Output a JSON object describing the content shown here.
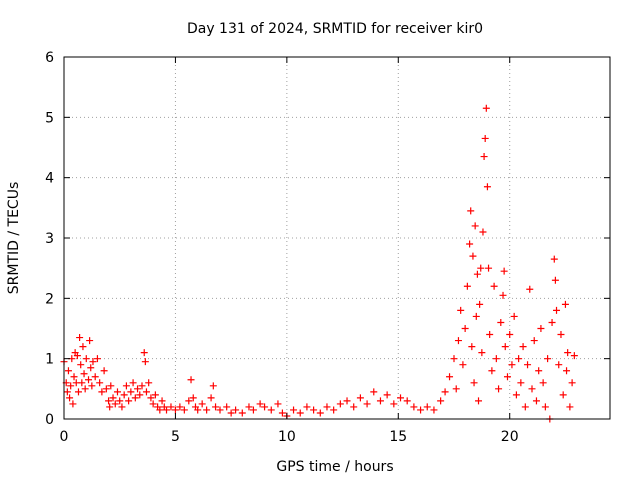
{
  "chart_data": {
    "type": "scatter",
    "title": "Day 131 of 2024, SRMTID for receiver kir0",
    "xlabel": "GPS time / hours",
    "ylabel": "SRMTID / TECUs",
    "xlim": [
      0,
      24.5
    ],
    "ylim": [
      0,
      6
    ],
    "xticks": [
      0,
      5,
      10,
      15,
      20
    ],
    "yticks": [
      0,
      1,
      2,
      3,
      4,
      5,
      6
    ],
    "grid": true,
    "marker": "+",
    "marker_color": "#ff0000",
    "series": [
      {
        "name": "SRMTID",
        "points": [
          [
            0.0,
            0.95
          ],
          [
            0.1,
            0.6
          ],
          [
            0.15,
            0.45
          ],
          [
            0.2,
            0.8
          ],
          [
            0.25,
            0.35
          ],
          [
            0.3,
            0.55
          ],
          [
            0.35,
            1.0
          ],
          [
            0.4,
            0.25
          ],
          [
            0.45,
            0.7
          ],
          [
            0.5,
            1.1
          ],
          [
            0.55,
            0.6
          ],
          [
            0.6,
            1.05
          ],
          [
            0.65,
            0.45
          ],
          [
            0.7,
            1.35
          ],
          [
            0.75,
            0.9
          ],
          [
            0.8,
            0.6
          ],
          [
            0.85,
            1.2
          ],
          [
            0.9,
            0.75
          ],
          [
            0.95,
            0.5
          ],
          [
            1.0,
            1.0
          ],
          [
            1.1,
            0.65
          ],
          [
            1.15,
            1.3
          ],
          [
            1.2,
            0.85
          ],
          [
            1.25,
            0.55
          ],
          [
            1.3,
            0.95
          ],
          [
            1.4,
            0.7
          ],
          [
            1.5,
            1.0
          ],
          [
            1.6,
            0.6
          ],
          [
            1.7,
            0.45
          ],
          [
            1.8,
            0.8
          ],
          [
            1.9,
            0.5
          ],
          [
            2.0,
            0.3
          ],
          [
            2.05,
            0.2
          ],
          [
            2.1,
            0.55
          ],
          [
            2.2,
            0.35
          ],
          [
            2.3,
            0.25
          ],
          [
            2.4,
            0.45
          ],
          [
            2.5,
            0.3
          ],
          [
            2.6,
            0.2
          ],
          [
            2.7,
            0.4
          ],
          [
            2.8,
            0.55
          ],
          [
            2.9,
            0.3
          ],
          [
            3.0,
            0.45
          ],
          [
            3.1,
            0.6
          ],
          [
            3.2,
            0.35
          ],
          [
            3.3,
            0.5
          ],
          [
            3.4,
            0.4
          ],
          [
            3.5,
            0.55
          ],
          [
            3.6,
            1.1
          ],
          [
            3.65,
            0.95
          ],
          [
            3.7,
            0.45
          ],
          [
            3.8,
            0.6
          ],
          [
            3.9,
            0.35
          ],
          [
            4.0,
            0.25
          ],
          [
            4.1,
            0.4
          ],
          [
            4.2,
            0.2
          ],
          [
            4.3,
            0.15
          ],
          [
            4.4,
            0.3
          ],
          [
            4.5,
            0.2
          ],
          [
            4.6,
            0.15
          ],
          [
            4.8,
            0.2
          ],
          [
            5.0,
            0.15
          ],
          [
            5.2,
            0.2
          ],
          [
            5.4,
            0.15
          ],
          [
            5.6,
            0.3
          ],
          [
            5.7,
            0.65
          ],
          [
            5.8,
            0.35
          ],
          [
            5.9,
            0.2
          ],
          [
            6.0,
            0.15
          ],
          [
            6.2,
            0.25
          ],
          [
            6.4,
            0.15
          ],
          [
            6.6,
            0.35
          ],
          [
            6.7,
            0.55
          ],
          [
            6.8,
            0.2
          ],
          [
            7.0,
            0.15
          ],
          [
            7.3,
            0.2
          ],
          [
            7.5,
            0.1
          ],
          [
            7.7,
            0.15
          ],
          [
            8.0,
            0.1
          ],
          [
            8.3,
            0.2
          ],
          [
            8.5,
            0.15
          ],
          [
            8.8,
            0.25
          ],
          [
            9.0,
            0.2
          ],
          [
            9.3,
            0.15
          ],
          [
            9.6,
            0.25
          ],
          [
            9.8,
            0.1
          ],
          [
            10.0,
            0.05
          ],
          [
            10.3,
            0.15
          ],
          [
            10.6,
            0.1
          ],
          [
            10.9,
            0.2
          ],
          [
            11.2,
            0.15
          ],
          [
            11.5,
            0.1
          ],
          [
            11.8,
            0.2
          ],
          [
            12.1,
            0.15
          ],
          [
            12.4,
            0.25
          ],
          [
            12.7,
            0.3
          ],
          [
            13.0,
            0.2
          ],
          [
            13.3,
            0.35
          ],
          [
            13.6,
            0.25
          ],
          [
            13.9,
            0.45
          ],
          [
            14.2,
            0.3
          ],
          [
            14.5,
            0.4
          ],
          [
            14.8,
            0.25
          ],
          [
            15.1,
            0.35
          ],
          [
            15.4,
            0.3
          ],
          [
            15.7,
            0.2
          ],
          [
            16.0,
            0.15
          ],
          [
            16.3,
            0.2
          ],
          [
            16.6,
            0.15
          ],
          [
            16.9,
            0.3
          ],
          [
            17.1,
            0.45
          ],
          [
            17.3,
            0.7
          ],
          [
            17.5,
            1.0
          ],
          [
            17.6,
            0.5
          ],
          [
            17.7,
            1.3
          ],
          [
            17.8,
            1.8
          ],
          [
            17.9,
            0.9
          ],
          [
            18.0,
            1.5
          ],
          [
            18.1,
            2.2
          ],
          [
            18.2,
            2.9
          ],
          [
            18.25,
            3.45
          ],
          [
            18.3,
            1.2
          ],
          [
            18.35,
            2.7
          ],
          [
            18.4,
            0.6
          ],
          [
            18.45,
            3.2
          ],
          [
            18.5,
            1.7
          ],
          [
            18.55,
            2.4
          ],
          [
            18.6,
            0.3
          ],
          [
            18.65,
            1.9
          ],
          [
            18.7,
            2.5
          ],
          [
            18.75,
            1.1
          ],
          [
            18.8,
            3.1
          ],
          [
            18.85,
            4.35
          ],
          [
            18.9,
            4.65
          ],
          [
            18.95,
            5.15
          ],
          [
            19.0,
            3.85
          ],
          [
            19.05,
            2.5
          ],
          [
            19.1,
            1.4
          ],
          [
            19.2,
            0.8
          ],
          [
            19.3,
            2.2
          ],
          [
            19.4,
            1.0
          ],
          [
            19.5,
            0.5
          ],
          [
            19.6,
            1.6
          ],
          [
            19.7,
            2.05
          ],
          [
            19.75,
            2.45
          ],
          [
            19.8,
            1.2
          ],
          [
            19.9,
            0.7
          ],
          [
            20.0,
            1.4
          ],
          [
            20.1,
            0.9
          ],
          [
            20.2,
            1.7
          ],
          [
            20.3,
            0.4
          ],
          [
            20.4,
            1.0
          ],
          [
            20.5,
            0.6
          ],
          [
            20.6,
            1.2
          ],
          [
            20.7,
            0.2
          ],
          [
            20.8,
            0.9
          ],
          [
            20.9,
            2.15
          ],
          [
            21.0,
            0.5
          ],
          [
            21.1,
            1.3
          ],
          [
            21.2,
            0.3
          ],
          [
            21.3,
            0.8
          ],
          [
            21.4,
            1.5
          ],
          [
            21.5,
            0.6
          ],
          [
            21.6,
            0.2
          ],
          [
            21.7,
            1.0
          ],
          [
            21.8,
            0.0
          ],
          [
            21.9,
            1.6
          ],
          [
            22.0,
            2.65
          ],
          [
            22.05,
            2.3
          ],
          [
            22.1,
            1.8
          ],
          [
            22.2,
            0.9
          ],
          [
            22.3,
            1.4
          ],
          [
            22.4,
            0.4
          ],
          [
            22.5,
            1.9
          ],
          [
            22.55,
            0.8
          ],
          [
            22.6,
            1.1
          ],
          [
            22.7,
            0.2
          ],
          [
            22.8,
            0.6
          ],
          [
            22.9,
            1.05
          ]
        ]
      }
    ]
  }
}
